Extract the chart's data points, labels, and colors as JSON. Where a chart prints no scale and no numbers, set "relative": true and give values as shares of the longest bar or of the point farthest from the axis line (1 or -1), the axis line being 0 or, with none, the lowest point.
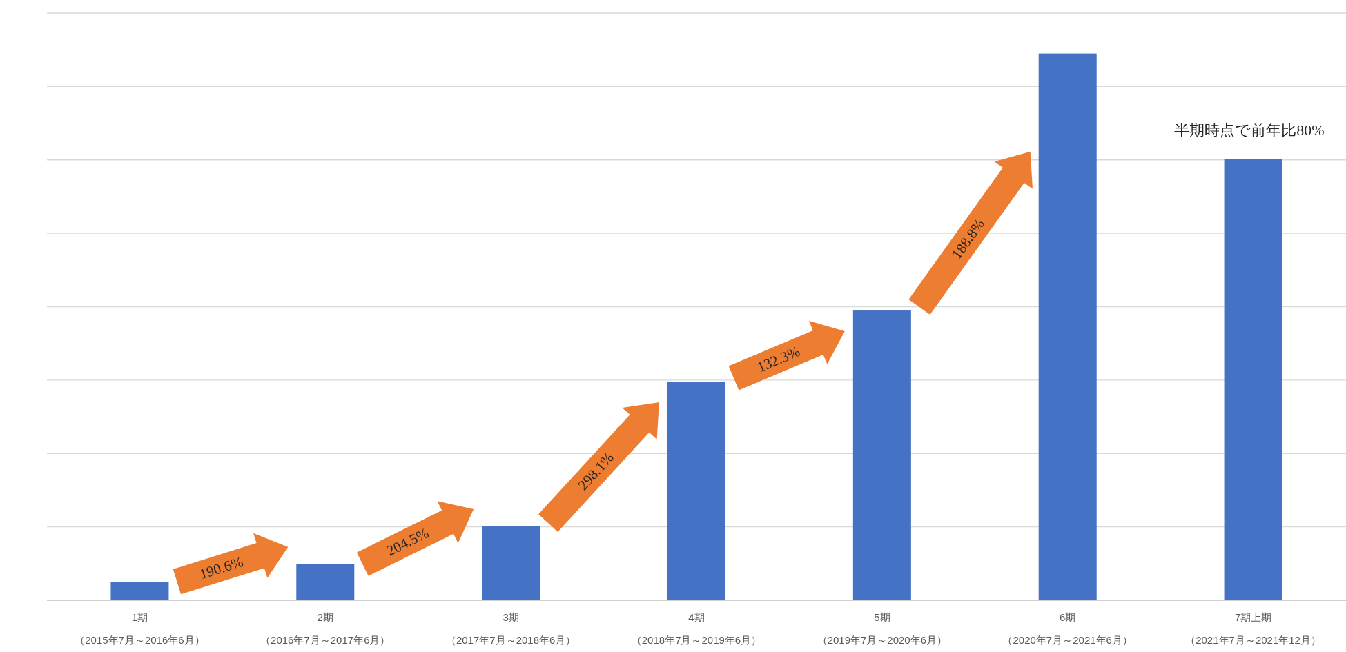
{
  "chart_data": {
    "type": "bar",
    "relative": true,
    "grid": "y",
    "color": "#4472c4",
    "categories": [
      "1期（2015年7月～2016年6月）",
      "2期（2016年7月～2017年6月）",
      "3期（2017年7月～2018年6月）",
      "4期（2018年7月～2019年6月）",
      "5期（2019年7月～2020年6月）",
      "6期（2020年7月～2021年6月）",
      "7期上期（2021年7月～2021年12月）"
    ],
    "values": [
      0.034,
      0.066,
      0.135,
      0.4,
      0.53,
      1,
      0.807
    ],
    "annotations": [
      "190.6%",
      "204.5%",
      "298.1%",
      "132.3%",
      "188.8%",
      "半期時点で前年比80%"
    ]
  }
}
